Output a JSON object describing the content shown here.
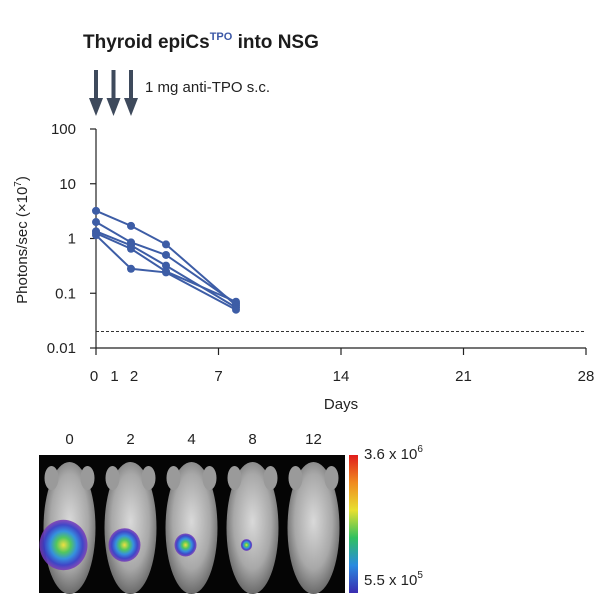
{
  "title": {
    "main": "Thyroid epiCs",
    "sup": "TPO",
    "rest": " into NSG"
  },
  "annotation": "1 mg anti-TPO s.c.",
  "chart_data": {
    "type": "line",
    "x_ticks": [
      "0",
      "1",
      "2",
      "7",
      "14",
      "21",
      "28"
    ],
    "y_ticks": [
      "100",
      "10",
      "1",
      "0.1",
      "0.01"
    ],
    "xlabel": "Days",
    "ylabel": "Photons/sec (×10",
    "ylabel_sup": "7",
    "ylabel_end": ")",
    "yscale": "log",
    "xlim": [
      0,
      28
    ],
    "ylim": [
      0.01,
      100
    ],
    "detection_limit": 0.02,
    "injection_days": [
      0,
      1,
      2
    ],
    "series": [
      {
        "x": [
          0,
          2,
          4,
          8
        ],
        "y": [
          3.2,
          1.7,
          0.78,
          0.06
        ]
      },
      {
        "x": [
          0,
          2,
          4,
          8
        ],
        "y": [
          2.0,
          0.85,
          0.5,
          0.065
        ]
      },
      {
        "x": [
          0,
          2,
          4,
          8
        ],
        "y": [
          1.35,
          0.75,
          0.32,
          0.055
        ]
      },
      {
        "x": [
          0,
          2,
          4,
          8
        ],
        "y": [
          1.15,
          0.28,
          0.24,
          0.05
        ]
      },
      {
        "x": [
          0,
          2,
          4,
          8
        ],
        "y": [
          1.25,
          0.65,
          0.25,
          0.07
        ]
      }
    ],
    "line_color": "#3d5da6"
  },
  "imaging": {
    "day_labels": [
      "0",
      "2",
      "4",
      "8",
      "12"
    ],
    "scale_max_base": "3.6 x 10",
    "scale_max_exp": "6",
    "scale_min_base": "5.5 x 10",
    "scale_min_exp": "5",
    "signal": [
      1.0,
      0.6,
      0.35,
      0.08,
      0.0
    ]
  }
}
